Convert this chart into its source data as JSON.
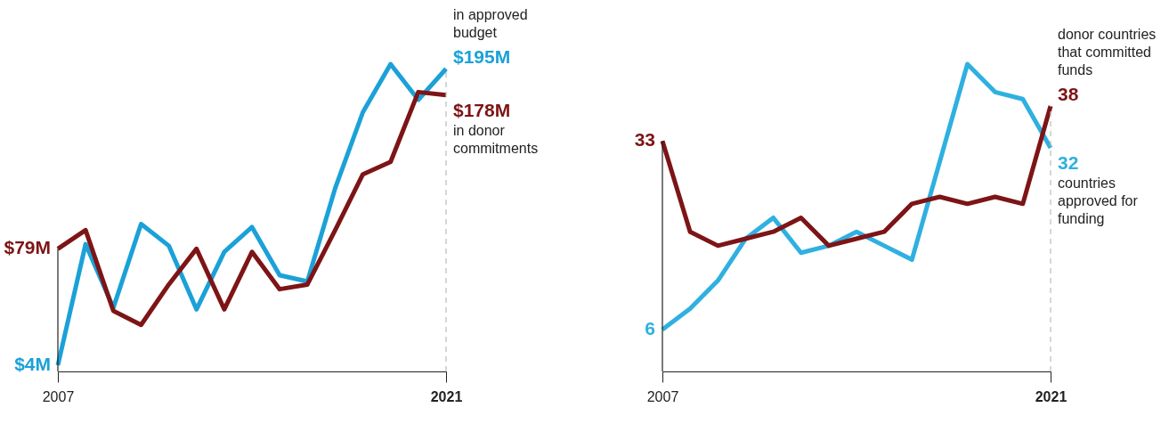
{
  "chart_data": [
    {
      "type": "line",
      "x": [
        "2007",
        "2008",
        "2009",
        "2010",
        "2011",
        "2012",
        "2013",
        "2014",
        "2015",
        "2016",
        "2017",
        "2018",
        "2019",
        "2020",
        "2021"
      ],
      "xlim": [
        "2007",
        "2021"
      ],
      "xticks": [
        {
          "value": "2007",
          "label": "2007"
        },
        {
          "value": "2021",
          "label": "2021"
        }
      ],
      "tick_labels": "x",
      "series": [
        {
          "color": "#1ba1d8",
          "values": [
            4,
            82,
            41,
            95,
            81,
            40,
            77,
            93,
            62,
            58,
            118,
            167,
            198,
            175,
            195
          ],
          "value_labels": [
            "$4M",
            null,
            null,
            null,
            null,
            null,
            null,
            null,
            null,
            null,
            null,
            null,
            null,
            null,
            "$195M"
          ]
        },
        {
          "color": "#7d1416",
          "values": [
            79,
            91,
            39,
            30,
            56,
            79,
            40,
            77,
            53,
            56,
            91,
            127,
            135,
            180,
            178
          ],
          "value_labels": [
            "$79M",
            null,
            null,
            null,
            null,
            null,
            null,
            null,
            null,
            null,
            null,
            null,
            null,
            null,
            "$178M"
          ]
        }
      ],
      "annotations": [
        {
          "text": "in approved budget",
          "x": "2021",
          "y": 195
        },
        {
          "text": "in donor commitments",
          "x": "2021",
          "y": 178
        }
      ],
      "ref_lines": [
        {
          "axis": "x",
          "value": "2007",
          "color": "#222222",
          "line_style": "solid"
        },
        {
          "axis": "x",
          "value": "2021",
          "color": "#bbbbbb",
          "line_style": "dashed"
        }
      ]
    },
    {
      "type": "line",
      "x": [
        "2007",
        "2008",
        "2009",
        "2010",
        "2011",
        "2012",
        "2013",
        "2014",
        "2015",
        "2016",
        "2017",
        "2018",
        "2019",
        "2020",
        "2021"
      ],
      "xlim": [
        "2007",
        "2021"
      ],
      "xticks": [
        {
          "value": "2007",
          "label": "2007"
        },
        {
          "value": "2021",
          "label": "2021"
        }
      ],
      "tick_labels": "x",
      "series": [
        {
          "color": "#2fb0e0",
          "values": [
            6,
            9,
            13,
            19,
            22,
            17,
            18,
            20,
            18,
            16,
            30,
            44,
            40,
            39,
            32
          ],
          "value_labels": [
            "6",
            null,
            null,
            null,
            null,
            null,
            null,
            null,
            null,
            null,
            null,
            null,
            null,
            null,
            "32"
          ]
        },
        {
          "color": "#7d1416",
          "values": [
            33,
            20,
            18,
            19,
            20,
            22,
            18,
            19,
            20,
            24,
            25,
            24,
            25,
            24,
            38
          ],
          "value_labels": [
            "33",
            null,
            null,
            null,
            null,
            null,
            null,
            null,
            null,
            null,
            null,
            null,
            null,
            null,
            "38"
          ]
        }
      ],
      "annotations": [
        {
          "text": "donor countries that committed funds",
          "x": "2021",
          "y": 38
        },
        {
          "text": "countries approved for funding",
          "x": "2021",
          "y": 32
        }
      ],
      "ref_lines": [
        {
          "axis": "x",
          "value": "2007",
          "color": "#222222",
          "line_style": "solid"
        },
        {
          "axis": "x",
          "value": "2021",
          "color": "#bbbbbb",
          "line_style": "dashed"
        }
      ]
    }
  ]
}
